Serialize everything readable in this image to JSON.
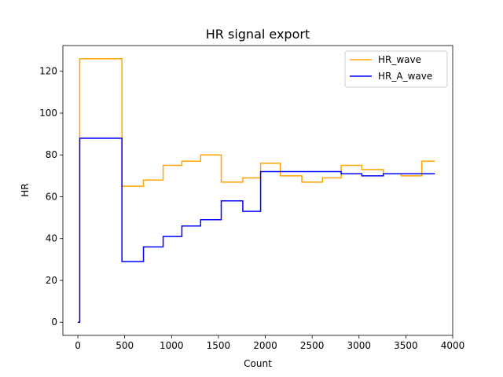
{
  "chart_data": {
    "type": "line",
    "step": "post",
    "title": "HR signal export",
    "xlabel": "Count",
    "ylabel": "HR",
    "xlim": [
      -160,
      4000
    ],
    "ylim": [
      -6.3,
      132.3
    ],
    "xticks": [
      0,
      500,
      1000,
      1500,
      2000,
      2500,
      3000,
      3500,
      4000
    ],
    "yticks": [
      0,
      20,
      40,
      60,
      80,
      100,
      120
    ],
    "grid": false,
    "legend_position": "top-right",
    "series": [
      {
        "name": "HR_wave",
        "color": "#ffa500",
        "x": [
          0,
          20,
          470,
          700,
          910,
          1110,
          1310,
          1530,
          1760,
          1950,
          2160,
          2390,
          2610,
          2810,
          3030,
          3260,
          3450,
          3670,
          3810
        ],
        "y": [
          0,
          126,
          65,
          68,
          75,
          77,
          80,
          67,
          69,
          76,
          70,
          67,
          69,
          75,
          73,
          71,
          70,
          77,
          77
        ]
      },
      {
        "name": "HR_A_wave",
        "color": "#0000ff",
        "x": [
          0,
          20,
          470,
          700,
          910,
          1110,
          1310,
          1530,
          1760,
          1950,
          2810,
          3030,
          3260,
          3810
        ],
        "y": [
          0,
          88,
          29,
          36,
          41,
          46,
          49,
          58,
          53,
          72,
          71,
          70,
          71,
          71
        ]
      }
    ]
  }
}
